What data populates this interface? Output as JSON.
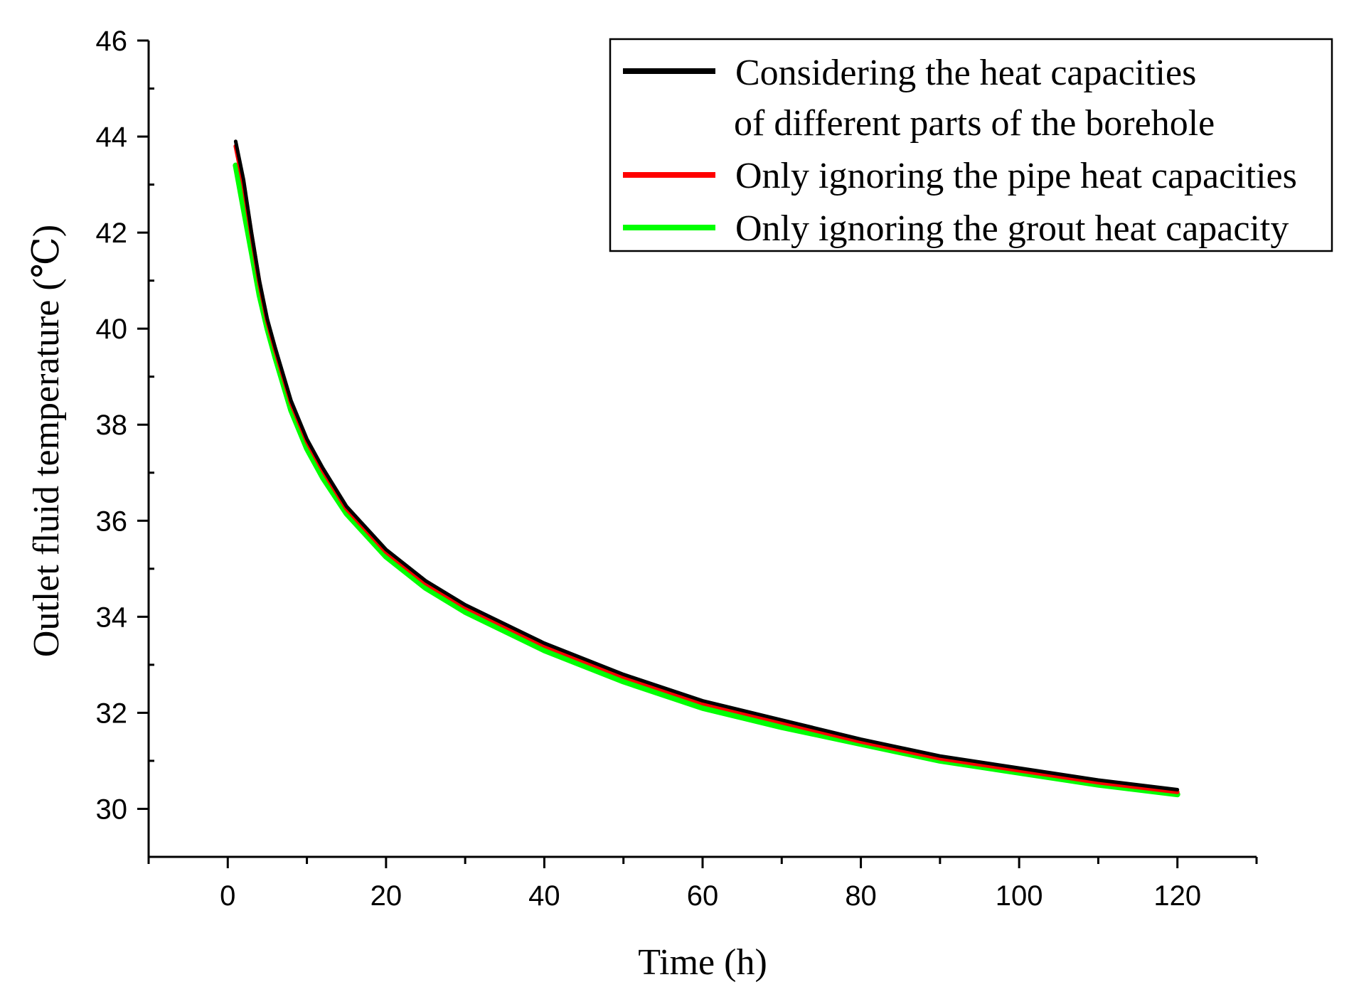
{
  "chart_data": {
    "type": "line",
    "title": "",
    "xlabel": "Time  (h)",
    "ylabel": "Outlet fluid temperature (℃)",
    "xlim": [
      -10,
      130
    ],
    "ylim": [
      29,
      46
    ],
    "xticks": [
      0,
      20,
      40,
      60,
      80,
      100,
      120
    ],
    "yticks": [
      30,
      32,
      34,
      36,
      38,
      40,
      42,
      44,
      46
    ],
    "grid": false,
    "legend_position": "top-right",
    "x": [
      1,
      2,
      3,
      4,
      5,
      6,
      8,
      10,
      12,
      15,
      20,
      25,
      30,
      40,
      50,
      60,
      70,
      80,
      90,
      100,
      110,
      120
    ],
    "series": [
      {
        "name": "Considering the heat capacities",
        "name_line2": "of different parts of the borehole",
        "color": "#000000",
        "values": [
          43.9,
          43.1,
          42.0,
          41.0,
          40.2,
          39.6,
          38.5,
          37.7,
          37.1,
          36.3,
          35.4,
          34.75,
          34.25,
          33.45,
          32.8,
          32.25,
          31.85,
          31.45,
          31.1,
          30.85,
          30.6,
          30.4
        ]
      },
      {
        "name": "Only ignoring the pipe heat capacities",
        "color": "#ff0000",
        "values": [
          43.8,
          43.0,
          41.95,
          40.95,
          40.15,
          39.55,
          38.45,
          37.65,
          37.05,
          36.25,
          35.35,
          34.7,
          34.2,
          33.4,
          32.75,
          32.2,
          31.8,
          31.4,
          31.05,
          30.8,
          30.55,
          30.35
        ]
      },
      {
        "name": "Only ignoring the grout heat capacity",
        "color": "#00ff00",
        "values": [
          43.4,
          42.5,
          41.6,
          40.7,
          40.0,
          39.4,
          38.3,
          37.5,
          36.9,
          36.15,
          35.25,
          34.6,
          34.1,
          33.3,
          32.65,
          32.1,
          31.7,
          31.35,
          31.0,
          30.75,
          30.5,
          30.3
        ]
      }
    ]
  }
}
